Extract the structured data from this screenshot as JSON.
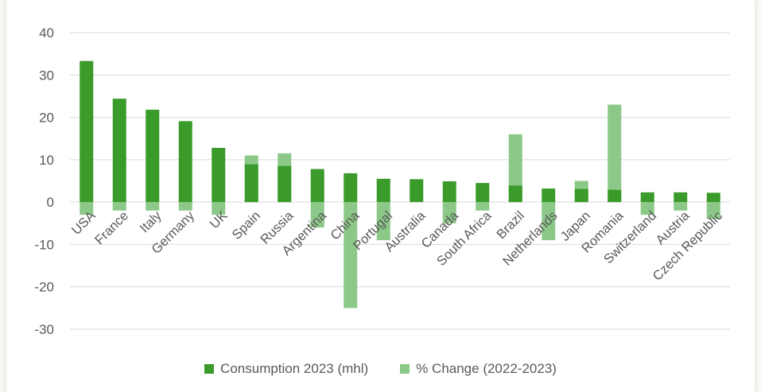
{
  "chart_data": {
    "type": "bar",
    "title": "",
    "xlabel": "",
    "ylabel": "",
    "ylim": [
      -30,
      40
    ],
    "yticks": [
      40,
      30,
      20,
      10,
      0,
      -10,
      -20,
      -30
    ],
    "grid": true,
    "legend_position": "bottom",
    "categories": [
      "USA",
      "France",
      "Italy",
      "Germany",
      "UK",
      "Spain",
      "Russia",
      "Argentina",
      "China",
      "Portugal",
      "Australia",
      "Canada",
      "South Africa",
      "Brazil",
      "Netherlands",
      "Japan",
      "Romania",
      "Switzerland",
      "Austria",
      "Czech Republic"
    ],
    "series": [
      {
        "name": "Consumption 2023 (mhl)",
        "color": "#3a9a2a",
        "values": [
          33.3,
          24.4,
          21.8,
          19.1,
          12.8,
          8.9,
          8.5,
          7.8,
          6.8,
          5.5,
          5.4,
          4.9,
          4.5,
          3.9,
          3.2,
          3.1,
          2.9,
          2.3,
          2.3,
          2.2
        ]
      },
      {
        "name": "% Change (2022-2023)",
        "color": "#8cc887",
        "values": [
          -3,
          -2,
          -2,
          -2,
          -3,
          11,
          11.5,
          -6,
          -25,
          -9,
          0,
          -5,
          -2,
          16,
          -9,
          5,
          23,
          -3,
          -2,
          -4
        ]
      }
    ]
  }
}
